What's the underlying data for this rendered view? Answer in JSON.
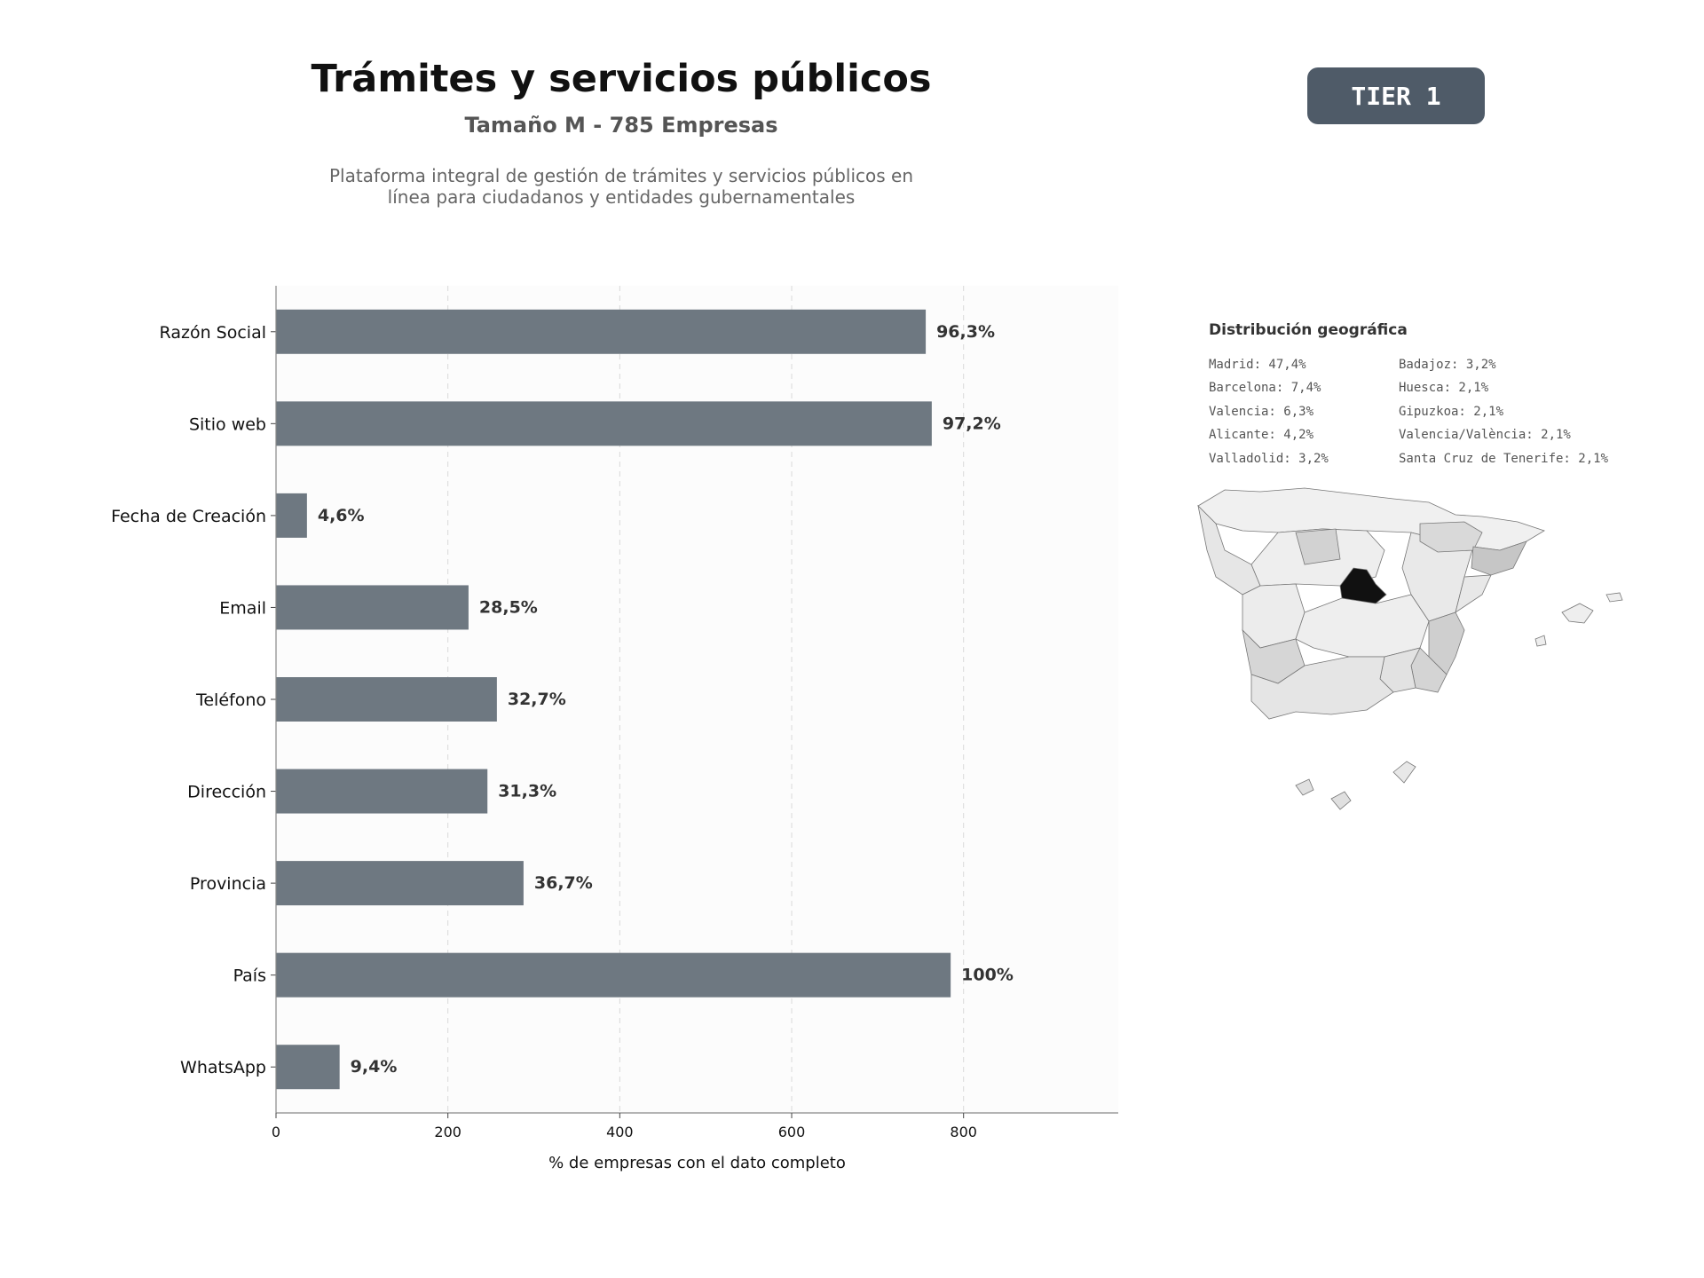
{
  "header": {
    "title": "Trámites y servicios públicos",
    "subtitle": "Tamaño M - 785 Empresas",
    "description_line1": "Plataforma integral de gestión de trámites y servicios públicos en",
    "description_line2": "línea para ciudadanos y entidades gubernamentales",
    "tier_label": "TIER 1"
  },
  "chart_data": {
    "type": "bar",
    "orientation": "horizontal",
    "categories": [
      "Razón Social",
      "Sitio web",
      "Fecha de Creación",
      "Email",
      "Teléfono",
      "Dirección",
      "Provincia",
      "País",
      "WhatsApp"
    ],
    "values": [
      756,
      763,
      36,
      224,
      257,
      246,
      288,
      785,
      74
    ],
    "data_labels": [
      "96,3%",
      "97,2%",
      "4,6%",
      "28,5%",
      "32,7%",
      "31,3%",
      "36,7%",
      "100%",
      "9,4%"
    ],
    "xlabel": "% de empresas con el dato completo",
    "ylabel": "",
    "xlim": [
      0,
      980
    ],
    "xticks": [
      0,
      200,
      400,
      600,
      800
    ],
    "grid": "vertical dashed",
    "bar_color": "#6e7881"
  },
  "geo": {
    "title": "Distribución geográfica",
    "left_column": [
      "Madrid: 47,4%",
      "Barcelona: 7,4%",
      "Valencia: 6,3%",
      "Alicante: 4,2%",
      "Valladolid: 3,2%"
    ],
    "right_column": [
      "Badajoz: 3,2%",
      "Huesca: 2,1%",
      "Gipuzkoa: 2,1%",
      "Valencia/València: 2,1%",
      "Santa Cruz de Tenerife: 2,1%"
    ],
    "map_icon": "spain-provinces-map-icon",
    "highlight_color": "#111111",
    "base_color": "#f0f0f0"
  }
}
